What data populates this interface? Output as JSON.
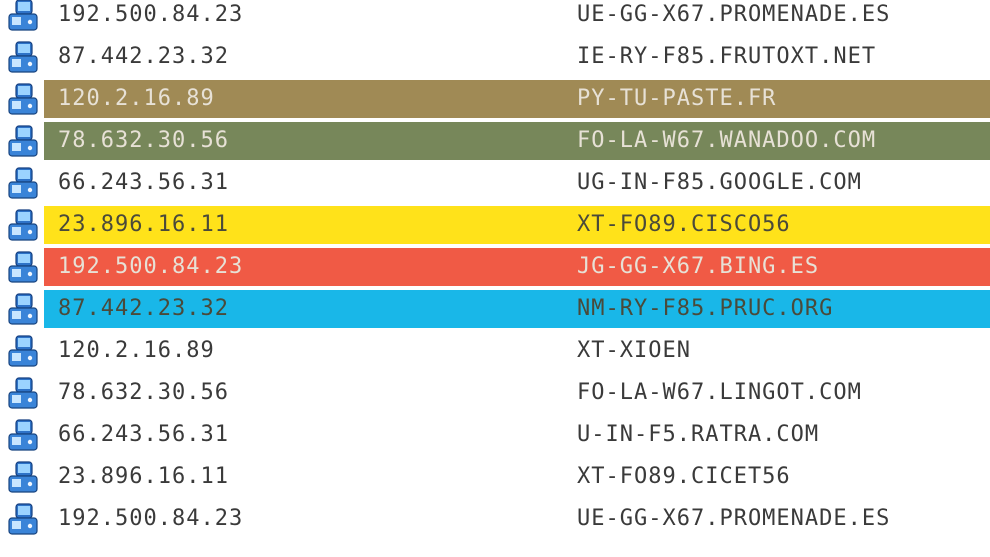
{
  "rows": [
    {
      "ip": "192.500.84.23",
      "host": "UE-GG-X67.PROMENADE.ES",
      "highlight": null
    },
    {
      "ip": "87.442.23.32",
      "host": "IE-RY-F85.FRUTOXT.NET",
      "highlight": null
    },
    {
      "ip": "120.2.16.89",
      "host": "PY-TU-PASTE.FR",
      "highlight": "#a08a55"
    },
    {
      "ip": "78.632.30.56",
      "host": "FO-LA-W67.WANADOO.COM",
      "highlight": "#77875a"
    },
    {
      "ip": "66.243.56.31",
      "host": "UG-IN-F85.GOOGLE.COM",
      "highlight": null
    },
    {
      "ip": "23.896.16.11",
      "host": "XT-FO89.CISCO56",
      "highlight": "#ffe21a"
    },
    {
      "ip": "192.500.84.23",
      "host": "JG-GG-X67.BING.ES",
      "highlight": "#f05a45"
    },
    {
      "ip": "87.442.23.32",
      "host": "NM-RY-F85.PRUC.ORG",
      "highlight": "#19b7e8"
    },
    {
      "ip": "120.2.16.89",
      "host": "XT-XIOEN",
      "highlight": null
    },
    {
      "ip": "78.632.30.56",
      "host": "FO-LA-W67.LINGOT.COM",
      "highlight": null
    },
    {
      "ip": "66.243.56.31",
      "host": "U-IN-F5.RATRA.COM",
      "highlight": null
    },
    {
      "ip": "23.896.16.11",
      "host": "XT-FO89.CICET56",
      "highlight": null
    },
    {
      "ip": "192.500.84.23",
      "host": "UE-GG-X67.PROMENADE.ES",
      "highlight": null
    }
  ],
  "icon": "computer-icon"
}
